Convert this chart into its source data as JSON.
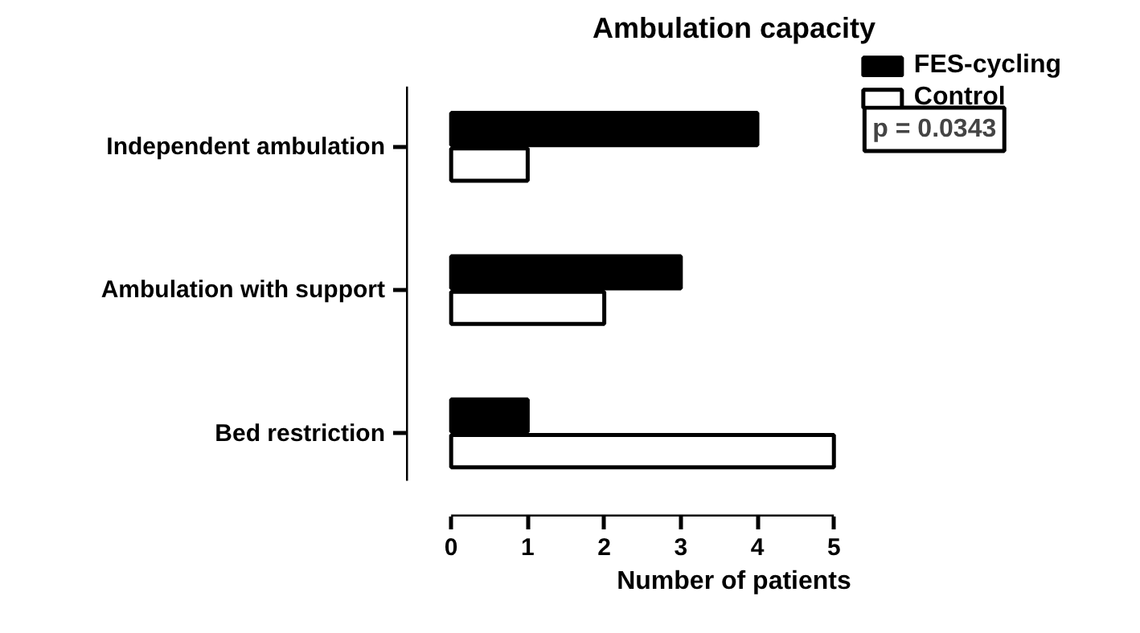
{
  "chart_data": {
    "type": "bar",
    "orientation": "horizontal",
    "title": "Ambulation capacity",
    "xlabel": "Number of patients",
    "categories": [
      "Independent ambulation",
      "Ambulation with support",
      "Bed restriction"
    ],
    "series": [
      {
        "name": "FES-cycling",
        "color": "#000000",
        "values": [
          4,
          3,
          1
        ]
      },
      {
        "name": "Control",
        "color": "#ffffff",
        "values": [
          1,
          2,
          5
        ]
      }
    ],
    "xlim": [
      0,
      5
    ],
    "xticks": [
      0,
      1,
      2,
      3,
      4,
      5
    ],
    "grid": false,
    "legend": "top right",
    "annotations": [
      "p = 0.0343"
    ]
  }
}
